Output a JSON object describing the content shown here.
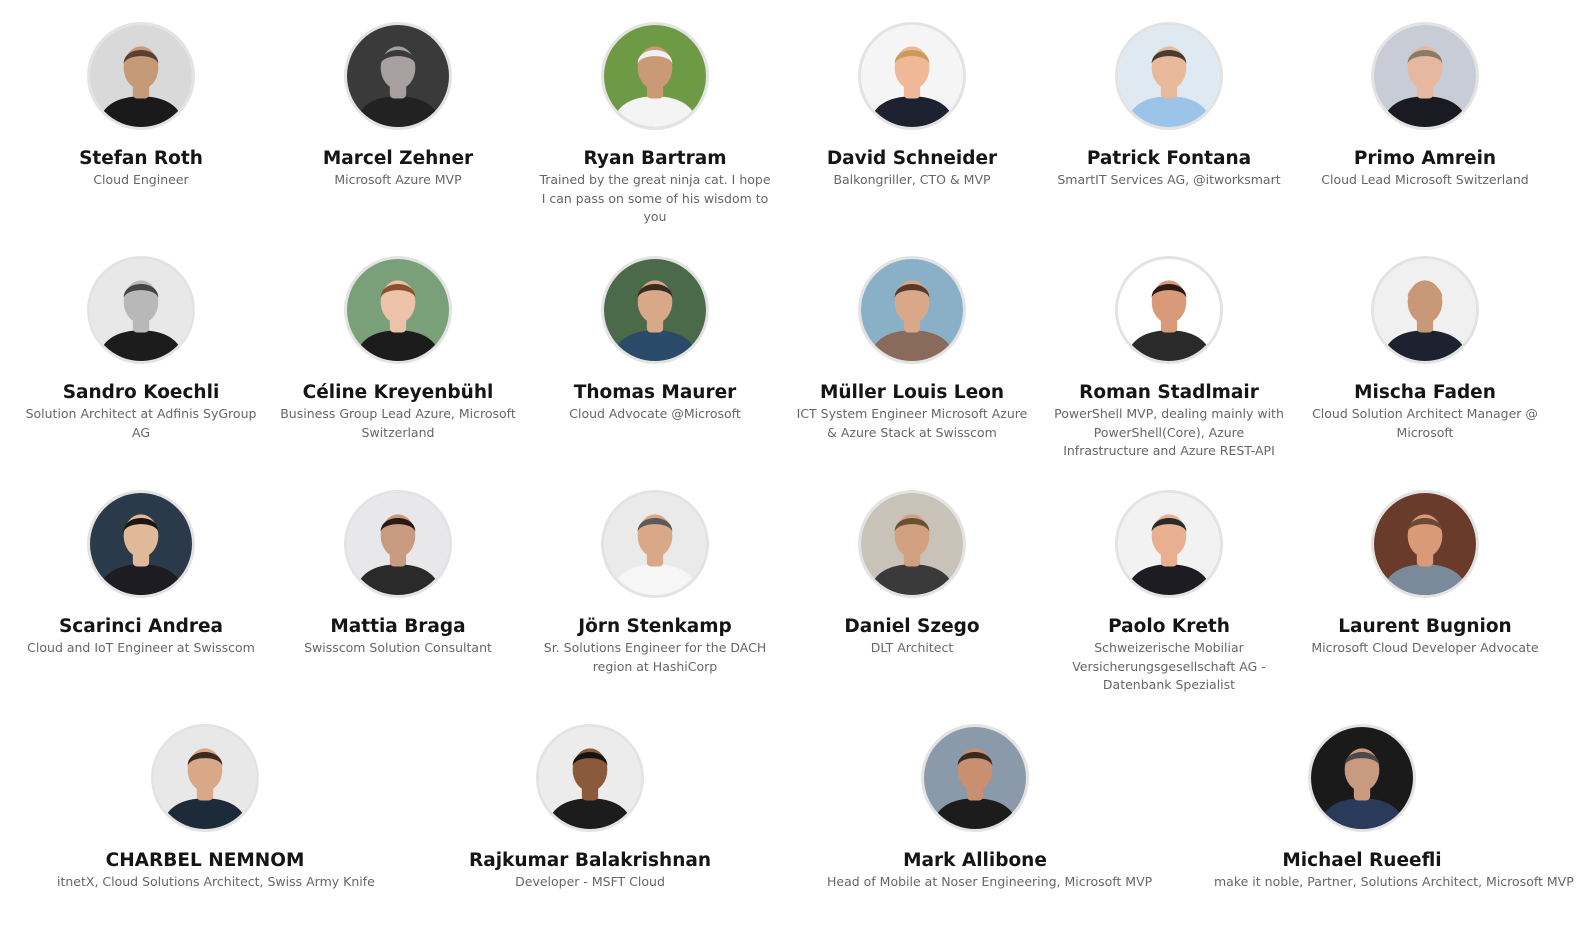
{
  "speakers": [
    {
      "name": "Stefan Roth",
      "title": "Cloud Engineer",
      "photo": {
        "bg": "#d9d9d9",
        "skin": "#c49a78",
        "shirt": "#1a1a1a",
        "hair": "#5a4030"
      }
    },
    {
      "name": "Marcel Zehner",
      "title": "Microsoft Azure MVP",
      "photo": {
        "bg": "#3a3a3a",
        "skin": "#a8a0a0",
        "shirt": "#222222",
        "hair": "#3a3a3a"
      }
    },
    {
      "name": "Ryan Bartram",
      "title": "Trained by the great ninja cat. I hope I can pass on some of his wisdom to you",
      "photo": {
        "bg": "#6f9a45",
        "skin": "#c99a75",
        "shirt": "#f4f4f4",
        "hair": "#f0f0f0"
      }
    },
    {
      "name": "David Schneider",
      "title": "Balkongriller, CTO & MVP",
      "photo": {
        "bg": "#f5f5f5",
        "skin": "#f0b896",
        "shirt": "#1c2230",
        "hair": "#c99a58"
      }
    },
    {
      "name": "Patrick Fontana",
      "title": "SmartIT Services AG, @itworksmart",
      "photo": {
        "bg": "#dfe9f2",
        "skin": "#e8b99a",
        "shirt": "#9cc4e8",
        "hair": "#4a3a30"
      }
    },
    {
      "name": "Primo Amrein",
      "title": "Cloud Lead Microsoft Switzerland",
      "photo": {
        "bg": "#c8ccd6",
        "skin": "#e6b8a0",
        "shirt": "#1a1a22",
        "hair": "#8a7a6a"
      }
    },
    {
      "name": "Sandro Koechli",
      "title": "Solution Architect at Adfinis SyGroup AG",
      "photo": {
        "bg": "#e8e8e8",
        "skin": "#b8b8b8",
        "shirt": "#1c1c1c",
        "hair": "#444444"
      }
    },
    {
      "name": "Céline Kreyenbühl",
      "title": "Business Group Lead Azure, Microsoft Switzerland",
      "photo": {
        "bg": "#7aa07a",
        "skin": "#ecc2a8",
        "shirt": "#1c1c1c",
        "hair": "#8a5030"
      }
    },
    {
      "name": "Thomas Maurer",
      "title": "Cloud Advocate @Microsoft",
      "photo": {
        "bg": "#4a6a4a",
        "skin": "#d8a888",
        "shirt": "#2a4a6a",
        "hair": "#3a2a20"
      }
    },
    {
      "name": "Müller Louis Leon",
      "title": "ICT System Engineer Microsoft Azure & Azure Stack at Swisscom",
      "photo": {
        "bg": "#8ab0c8",
        "skin": "#d8a888",
        "shirt": "#8a6a5a",
        "hair": "#5a3a28"
      }
    },
    {
      "name": "Roman Stadlmair",
      "title": "PowerShell MVP, dealing mainly with PowerShell(Core), Azure Infrastructure and Azure REST-API",
      "photo": {
        "bg": "#ffffff",
        "skin": "#d89a78",
        "shirt": "#2a2a2a",
        "hair": "#2a1a12"
      }
    },
    {
      "name": "Mischa Faden",
      "title": "Cloud Solution Architect Manager @ Microsoft",
      "photo": {
        "bg": "#f0f0f0",
        "skin": "#c89878",
        "shirt": "#1c2230",
        "hair": "#c89878"
      }
    },
    {
      "name": "Scarinci Andrea",
      "title": "Cloud and IoT Engineer at Swisscom",
      "photo": {
        "bg": "#2a3a4a",
        "skin": "#e0b89a",
        "shirt": "#1c1c22",
        "hair": "#1c1410"
      }
    },
    {
      "name": "Mattia Braga",
      "title": "Swisscom Solution Consultant",
      "photo": {
        "bg": "#e8e8ea",
        "skin": "#c89a80",
        "shirt": "#2a2a2a",
        "hair": "#2a1a14"
      }
    },
    {
      "name": "Jörn Stenkamp",
      "title": "Sr. Solutions Engineer for the DACH region at HashiCorp",
      "photo": {
        "bg": "#eaeaea",
        "skin": "#d8a888",
        "shirt": "#f6f6f6",
        "hair": "#5a5a5a"
      }
    },
    {
      "name": "Daniel Szego",
      "title": "DLT Architect",
      "photo": {
        "bg": "#c8c2b8",
        "skin": "#d0a080",
        "shirt": "#3a3a3a",
        "hair": "#6a5030"
      }
    },
    {
      "name": "Paolo Kreth",
      "title": "Schweizerische Mobiliar Versicherungsgesellschaft AG - Datenbank Spezialist",
      "photo": {
        "bg": "#f2f2f2",
        "skin": "#e8b090",
        "shirt": "#1c1c22",
        "hair": "#2a2a2a"
      }
    },
    {
      "name": "Laurent Bugnion",
      "title": "Microsoft Cloud Developer Advocate",
      "photo": {
        "bg": "#6a3a2a",
        "skin": "#d89a78",
        "shirt": "#7a8a9a",
        "hair": "#6a4a30"
      }
    },
    {
      "name": "CHARBEL NEMNOM",
      "title": "itnetX, Cloud Solutions Architect, Swiss Army Knife",
      "photo": {
        "bg": "#e8e8e8",
        "skin": "#d8a888",
        "shirt": "#1c2a3a",
        "hair": "#3a2a20"
      }
    },
    {
      "name": "Rajkumar Balakrishnan",
      "title": "Developer - MSFT Cloud",
      "photo": {
        "bg": "#ececec",
        "skin": "#8a5a3a",
        "shirt": "#1c1c1c",
        "hair": "#1a1410"
      }
    },
    {
      "name": "Mark Allibone",
      "title": "Head of Mobile at Noser Engineering, Microsoft MVP",
      "photo": {
        "bg": "#8a9aaa",
        "skin": "#c89070",
        "shirt": "#1c1c1c",
        "hair": "#3a2a20"
      }
    },
    {
      "name": "Michael Rueefli",
      "title": "make it noble, Partner, Solutions Architect, Microsoft MVP",
      "photo": {
        "bg": "#1a1a1a",
        "skin": "#c89a80",
        "shirt": "#2a3a5a",
        "hair": "#4a4a4a"
      }
    }
  ]
}
